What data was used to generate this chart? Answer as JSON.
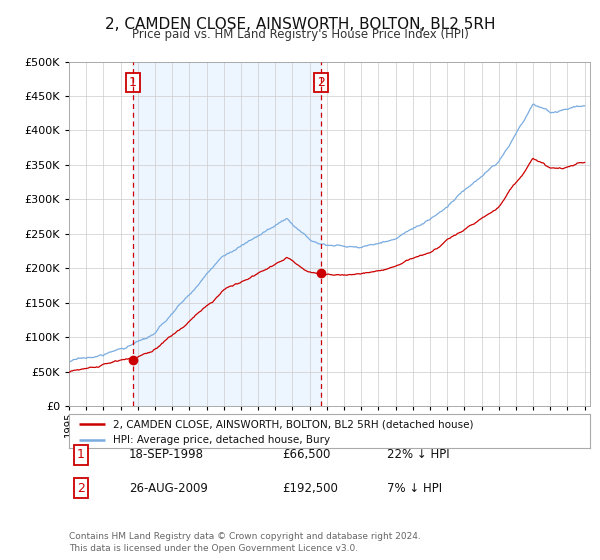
{
  "title": "2, CAMDEN CLOSE, AINSWORTH, BOLTON, BL2 5RH",
  "subtitle": "Price paid vs. HM Land Registry's House Price Index (HPI)",
  "legend_label_red": "2, CAMDEN CLOSE, AINSWORTH, BOLTON, BL2 5RH (detached house)",
  "legend_label_blue": "HPI: Average price, detached house, Bury",
  "sale1_label": "1",
  "sale1_date": "18-SEP-1998",
  "sale1_price": "£66,500",
  "sale1_hpi": "22% ↓ HPI",
  "sale2_label": "2",
  "sale2_date": "26-AUG-2009",
  "sale2_price": "£192,500",
  "sale2_hpi": "7% ↓ HPI",
  "footnote": "Contains HM Land Registry data © Crown copyright and database right 2024.\nThis data is licensed under the Open Government Licence v3.0.",
  "red_color": "#cc0000",
  "blue_color": "#7aace0",
  "blue_fill": "#ddeeff",
  "vline_color": "#cc0000",
  "grid_color": "#cccccc",
  "background_color": "#ffffff",
  "ylim": [
    0,
    500000
  ],
  "yticks": [
    0,
    50000,
    100000,
    150000,
    200000,
    250000,
    300000,
    350000,
    400000,
    450000,
    500000
  ],
  "sale1_year": 1998.72,
  "sale2_year": 2009.65,
  "sale1_price_val": 66500,
  "sale2_price_val": 192500,
  "xstart": 1995,
  "xend": 2025
}
